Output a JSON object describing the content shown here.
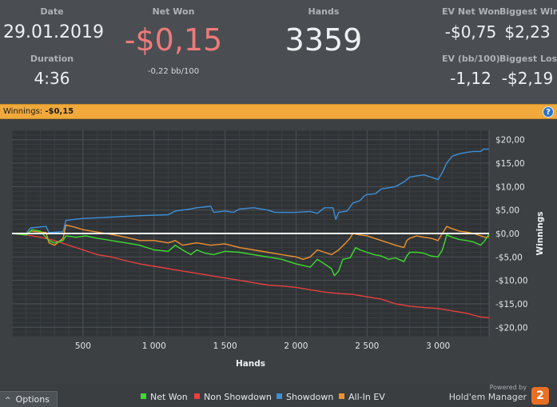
{
  "stats": {
    "date_label": "Date",
    "date_value": "29.01.2019",
    "duration_label": "Duration",
    "duration_value": "4:36",
    "netwon_label": "Net Won",
    "netwon_value": "-$0,15",
    "netwon_sub": "-0,22 bb/100",
    "hands_label": "Hands",
    "hands_value": "3359",
    "ev_netwon_label": "EV Net Won",
    "ev_netwon_value": "-$0,75",
    "biggest_win_label": "Biggest Win",
    "biggest_win_value": "$2,23",
    "ev_bb_label": "EV (bb/100)",
    "ev_bb_value": "-1,12",
    "biggest_loss_label": "Biggest Loss",
    "biggest_loss_value": "-$2,19"
  },
  "winbar": {
    "label": "Winnings:",
    "value": "-$0,15",
    "help_glyph": "?"
  },
  "footer": {
    "options_label": "Options",
    "options_caret": "^",
    "powered_by": "Powered by",
    "brand_name": "Hold'em Manager",
    "brand_logo": "2"
  },
  "colors": {
    "net_won": "#3ddc2f",
    "non_showdown": "#e8403e",
    "showdown": "#3d8fd8",
    "all_in_ev": "#f0912e",
    "net_won_value": "#ee7a7a"
  },
  "chart_data": {
    "type": "line",
    "xlabel": "Hands",
    "ylabel": "Winnings",
    "xlim": [
      0,
      3359
    ],
    "ylim": [
      -22,
      22
    ],
    "x_ticks": [
      500,
      1000,
      1500,
      2000,
      2500,
      3000
    ],
    "x_tick_labels": [
      "500",
      "1 000",
      "1 500",
      "2 000",
      "2 500",
      "3 000"
    ],
    "y_ticks": [
      20,
      15,
      10,
      5,
      0,
      -5,
      -10,
      -15,
      -20
    ],
    "y_tick_labels": [
      "$20,00",
      "$15,00",
      "$10,00",
      "$5,00",
      "$0,00",
      "-$5,00",
      "-$10,00",
      "-$15,00",
      "-$20,00"
    ],
    "series": [
      {
        "name": "Net Won",
        "key": "net_won",
        "points": [
          [
            0,
            0
          ],
          [
            100,
            -0.3
          ],
          [
            140,
            0.8
          ],
          [
            200,
            0.5
          ],
          [
            260,
            -1.5
          ],
          [
            300,
            -2.0
          ],
          [
            360,
            -1.5
          ],
          [
            380,
            -0.5
          ],
          [
            450,
            -0.8
          ],
          [
            520,
            -0.5
          ],
          [
            600,
            -1.0
          ],
          [
            700,
            -1.5
          ],
          [
            800,
            -2.0
          ],
          [
            900,
            -2.5
          ],
          [
            1000,
            -3.5
          ],
          [
            1100,
            -3.8
          ],
          [
            1150,
            -2.5
          ],
          [
            1200,
            -3.5
          ],
          [
            1260,
            -4.5
          ],
          [
            1300,
            -3.5
          ],
          [
            1360,
            -4.2
          ],
          [
            1420,
            -4.5
          ],
          [
            1500,
            -3.8
          ],
          [
            1600,
            -4.0
          ],
          [
            1700,
            -4.5
          ],
          [
            1800,
            -5.0
          ],
          [
            1900,
            -5.5
          ],
          [
            2000,
            -6.5
          ],
          [
            2050,
            -6.8
          ],
          [
            2100,
            -7.2
          ],
          [
            2150,
            -5.5
          ],
          [
            2200,
            -6.5
          ],
          [
            2250,
            -7.5
          ],
          [
            2270,
            -9.0
          ],
          [
            2300,
            -8.0
          ],
          [
            2330,
            -5.5
          ],
          [
            2380,
            -5.2
          ],
          [
            2420,
            -3.0
          ],
          [
            2450,
            -3.5
          ],
          [
            2500,
            -4.0
          ],
          [
            2550,
            -4.5
          ],
          [
            2600,
            -4.8
          ],
          [
            2650,
            -5.5
          ],
          [
            2700,
            -5.2
          ],
          [
            2760,
            -6.0
          ],
          [
            2780,
            -4.8
          ],
          [
            2800,
            -4.0
          ],
          [
            2850,
            -4.0
          ],
          [
            2900,
            -4.2
          ],
          [
            2950,
            -4.8
          ],
          [
            3000,
            -5.0
          ],
          [
            3030,
            -3.5
          ],
          [
            3050,
            -1.5
          ],
          [
            3060,
            -0.3
          ],
          [
            3100,
            -0.8
          ],
          [
            3150,
            -1.3
          ],
          [
            3200,
            -1.5
          ],
          [
            3250,
            -1.8
          ],
          [
            3300,
            -2.5
          ],
          [
            3330,
            -1.5
          ],
          [
            3359,
            -0.15
          ]
        ]
      },
      {
        "name": "Non Showdown",
        "key": "non_showdown",
        "points": [
          [
            0,
            0
          ],
          [
            100,
            -0.3
          ],
          [
            200,
            -0.8
          ],
          [
            300,
            -1.5
          ],
          [
            400,
            -2.5
          ],
          [
            500,
            -3.5
          ],
          [
            600,
            -4.5
          ],
          [
            700,
            -5.0
          ],
          [
            800,
            -5.8
          ],
          [
            900,
            -6.5
          ],
          [
            1000,
            -7.0
          ],
          [
            1100,
            -7.5
          ],
          [
            1200,
            -8.0
          ],
          [
            1300,
            -8.5
          ],
          [
            1400,
            -9.0
          ],
          [
            1500,
            -9.5
          ],
          [
            1600,
            -10.0
          ],
          [
            1700,
            -10.5
          ],
          [
            1800,
            -11.0
          ],
          [
            1900,
            -11.2
          ],
          [
            2000,
            -11.5
          ],
          [
            2100,
            -12.0
          ],
          [
            2200,
            -12.5
          ],
          [
            2300,
            -12.8
          ],
          [
            2400,
            -13.0
          ],
          [
            2500,
            -13.5
          ],
          [
            2600,
            -14.0
          ],
          [
            2700,
            -15.0
          ],
          [
            2800,
            -15.5
          ],
          [
            2900,
            -15.8
          ],
          [
            3000,
            -16.0
          ],
          [
            3100,
            -16.5
          ],
          [
            3200,
            -17.0
          ],
          [
            3300,
            -17.8
          ],
          [
            3359,
            -18.0
          ]
        ]
      },
      {
        "name": "Showdown",
        "key": "showdown",
        "points": [
          [
            0,
            0
          ],
          [
            100,
            0
          ],
          [
            130,
            1.2
          ],
          [
            240,
            1.5
          ],
          [
            260,
            0.2
          ],
          [
            360,
            0.4
          ],
          [
            380,
            2.8
          ],
          [
            500,
            3.2
          ],
          [
            700,
            3.5
          ],
          [
            900,
            3.8
          ],
          [
            1100,
            4.0
          ],
          [
            1150,
            4.8
          ],
          [
            1250,
            5.2
          ],
          [
            1300,
            5.5
          ],
          [
            1400,
            5.8
          ],
          [
            1420,
            4.5
          ],
          [
            1500,
            4.8
          ],
          [
            1560,
            4.5
          ],
          [
            1600,
            5.2
          ],
          [
            1700,
            5.5
          ],
          [
            1800,
            5.0
          ],
          [
            1850,
            4.5
          ],
          [
            2000,
            4.5
          ],
          [
            2100,
            4.7
          ],
          [
            2150,
            4.3
          ],
          [
            2200,
            5.5
          ],
          [
            2260,
            5.5
          ],
          [
            2280,
            3.0
          ],
          [
            2300,
            4.5
          ],
          [
            2360,
            4.8
          ],
          [
            2400,
            6.5
          ],
          [
            2450,
            7.0
          ],
          [
            2480,
            8.0
          ],
          [
            2500,
            8.3
          ],
          [
            2560,
            8.5
          ],
          [
            2600,
            9.5
          ],
          [
            2700,
            10.0
          ],
          [
            2760,
            11.0
          ],
          [
            2800,
            12.0
          ],
          [
            2850,
            12.3
          ],
          [
            2900,
            12.5
          ],
          [
            2950,
            12.0
          ],
          [
            3000,
            11.5
          ],
          [
            3030,
            13.0
          ],
          [
            3060,
            15.0
          ],
          [
            3100,
            16.5
          ],
          [
            3150,
            17.0
          ],
          [
            3200,
            17.3
          ],
          [
            3250,
            17.5
          ],
          [
            3300,
            17.5
          ],
          [
            3320,
            18.0
          ],
          [
            3359,
            18.0
          ]
        ]
      },
      {
        "name": "All-In EV",
        "key": "all_in_ev",
        "points": [
          [
            0,
            0
          ],
          [
            100,
            -0.2
          ],
          [
            130,
            0.5
          ],
          [
            240,
            0.2
          ],
          [
            260,
            -2.0
          ],
          [
            300,
            -2.5
          ],
          [
            360,
            -1.0
          ],
          [
            380,
            1.8
          ],
          [
            450,
            1.3
          ],
          [
            500,
            0.8
          ],
          [
            600,
            0.3
          ],
          [
            700,
            -0.2
          ],
          [
            800,
            -0.8
          ],
          [
            900,
            -1.5
          ],
          [
            1000,
            -1.5
          ],
          [
            1100,
            -2.0
          ],
          [
            1150,
            -1.5
          ],
          [
            1200,
            -2.5
          ],
          [
            1300,
            -2.0
          ],
          [
            1400,
            -2.5
          ],
          [
            1500,
            -2.2
          ],
          [
            1600,
            -3.0
          ],
          [
            1700,
            -3.5
          ],
          [
            1800,
            -4.0
          ],
          [
            1900,
            -4.5
          ],
          [
            2000,
            -5.0
          ],
          [
            2050,
            -5.5
          ],
          [
            2100,
            -5.0
          ],
          [
            2150,
            -3.5
          ],
          [
            2200,
            -4.0
          ],
          [
            2250,
            -4.5
          ],
          [
            2300,
            -3.5
          ],
          [
            2350,
            -2.0
          ],
          [
            2380,
            -1.0
          ],
          [
            2400,
            0
          ],
          [
            2450,
            -0.3
          ],
          [
            2500,
            -0.5
          ],
          [
            2550,
            -1.0
          ],
          [
            2600,
            -1.5
          ],
          [
            2650,
            -2.0
          ],
          [
            2700,
            -2.5
          ],
          [
            2760,
            -3.0
          ],
          [
            2780,
            -1.5
          ],
          [
            2800,
            -1.0
          ],
          [
            2850,
            -0.5
          ],
          [
            2900,
            -0.8
          ],
          [
            2950,
            -1.0
          ],
          [
            3000,
            -1.5
          ],
          [
            3030,
            0
          ],
          [
            3060,
            1.5
          ],
          [
            3100,
            1.0
          ],
          [
            3150,
            0.5
          ],
          [
            3200,
            0.3
          ],
          [
            3250,
            0
          ],
          [
            3300,
            -0.5
          ],
          [
            3330,
            -0.8
          ],
          [
            3359,
            -0.75
          ]
        ]
      }
    ]
  }
}
